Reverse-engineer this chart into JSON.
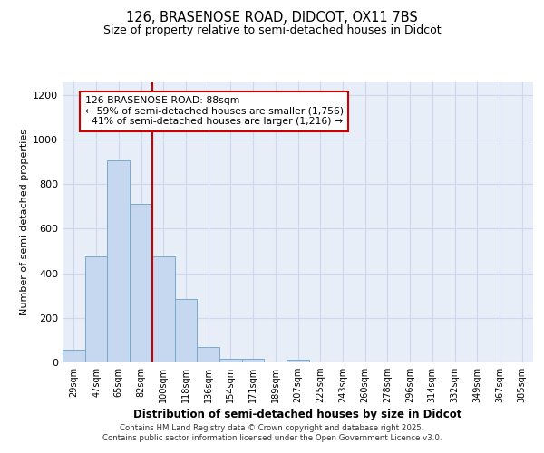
{
  "title_line1": "126, BRASENOSE ROAD, DIDCOT, OX11 7BS",
  "title_line2": "Size of property relative to semi-detached houses in Didcot",
  "xlabel": "Distribution of semi-detached houses by size in Didcot",
  "ylabel": "Number of semi-detached properties",
  "bar_labels": [
    "29sqm",
    "47sqm",
    "65sqm",
    "82sqm",
    "100sqm",
    "118sqm",
    "136sqm",
    "154sqm",
    "171sqm",
    "189sqm",
    "207sqm",
    "225sqm",
    "243sqm",
    "260sqm",
    "278sqm",
    "296sqm",
    "314sqm",
    "332sqm",
    "349sqm",
    "367sqm",
    "385sqm"
  ],
  "bar_values": [
    55,
    475,
    905,
    710,
    475,
    285,
    68,
    15,
    15,
    0,
    14,
    0,
    0,
    0,
    0,
    0,
    0,
    0,
    0,
    0,
    0
  ],
  "bar_color": "#c5d8ef",
  "bar_edge_color": "#7aaacc",
  "property_line_x": 3.5,
  "property_size": "88sqm",
  "pct_smaller": 59,
  "n_smaller": 1756,
  "pct_larger": 41,
  "n_larger": 1216,
  "annotation_box_color": "#cc0000",
  "ylim": [
    0,
    1260
  ],
  "yticks": [
    0,
    200,
    400,
    600,
    800,
    1000,
    1200
  ],
  "grid_color": "#cdd8ec",
  "background_color": "#e8eef8",
  "footer_line1": "Contains HM Land Registry data © Crown copyright and database right 2025.",
  "footer_line2": "Contains public sector information licensed under the Open Government Licence v3.0."
}
